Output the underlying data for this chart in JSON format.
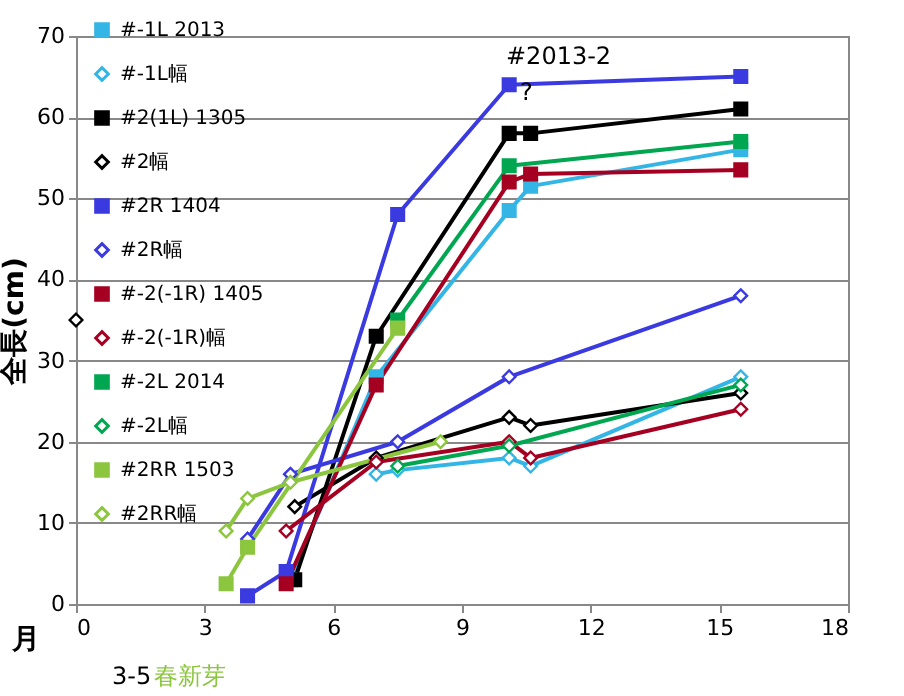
{
  "chart_data": {
    "type": "line",
    "xlabel": "月",
    "ylabel": "全長(cm)",
    "xlim": [
      0,
      18
    ],
    "xticks": [
      0,
      3,
      6,
      9,
      12,
      15,
      18
    ],
    "ylim": [
      0,
      70
    ],
    "yticks": [
      0,
      10,
      20,
      30,
      40,
      50,
      60,
      70
    ],
    "grid": "y",
    "legend": "top left",
    "annotations": [
      "#2013-2",
      "?",
      "3-5",
      "春新芽"
    ],
    "series": [
      {
        "name": "#-1L 2013",
        "color": "#33b5e5",
        "marker": "square",
        "x": [
          5,
          7,
          10.1,
          10.6,
          15.5
        ],
        "values": [
          3,
          28,
          48.5,
          51.5,
          56
        ]
      },
      {
        "name": "#-1L幅",
        "color": "#33b5e5",
        "marker": "diamond",
        "x": [
          7,
          7.5,
          10.1,
          10.6,
          15.5
        ],
        "values": [
          16,
          16.5,
          18,
          17,
          28
        ]
      },
      {
        "name": "#2(1L) 1305",
        "color": "#000000",
        "marker": "square",
        "x": [
          5.1,
          7,
          10.1,
          10.6,
          15.5
        ],
        "values": [
          3,
          33,
          58,
          58,
          61
        ]
      },
      {
        "name": "#2幅",
        "color": "#000000",
        "marker": "diamond",
        "x": [
          0,
          2,
          5.1,
          7,
          10.1,
          10.6,
          15.5
        ],
        "values": [
          35,
          null,
          12,
          18,
          23,
          22,
          26
        ]
      },
      {
        "name": "#2R 1404",
        "color": "#3a3ae0",
        "marker": "square",
        "x": [
          4,
          4.9,
          7.5,
          10.1,
          15.5
        ],
        "values": [
          1,
          4,
          48,
          64,
          65
        ]
      },
      {
        "name": "#2R幅",
        "color": "#3a3ae0",
        "marker": "diamond",
        "x": [
          4,
          5,
          7.5,
          10.1,
          15.5
        ],
        "values": [
          8,
          16,
          20,
          28,
          38
        ]
      },
      {
        "name": "#-2(-1R) 1405",
        "color": "#a50021",
        "marker": "square",
        "x": [
          4.9,
          7,
          10.1,
          10.6,
          15.5
        ],
        "values": [
          2.5,
          27,
          52,
          53,
          53.5
        ]
      },
      {
        "name": "#-2(-1R)幅",
        "color": "#a50021",
        "marker": "diamond",
        "x": [
          4.9,
          7,
          10.1,
          10.6,
          15.5
        ],
        "values": [
          9,
          17.5,
          20,
          18,
          24
        ]
      },
      {
        "name": "#-2L 2014",
        "color": "#00a650",
        "marker": "square",
        "x": [
          7.5,
          10.1,
          15.5
        ],
        "values": [
          35,
          54,
          57
        ]
      },
      {
        "name": "#-2L幅",
        "color": "#00a650",
        "marker": "diamond",
        "x": [
          7.5,
          10.1,
          15.5
        ],
        "values": [
          17,
          19.5,
          27
        ]
      },
      {
        "name": "#2RR 1503",
        "color": "#8cc63f",
        "marker": "square",
        "x": [
          3.5,
          4,
          7.5
        ],
        "values": [
          2.5,
          7,
          34
        ]
      },
      {
        "name": "#2RR幅",
        "color": "#8cc63f",
        "marker": "diamond",
        "x": [
          3.5,
          4,
          5,
          8.5
        ],
        "values": [
          9,
          13,
          15,
          20
        ]
      }
    ]
  }
}
